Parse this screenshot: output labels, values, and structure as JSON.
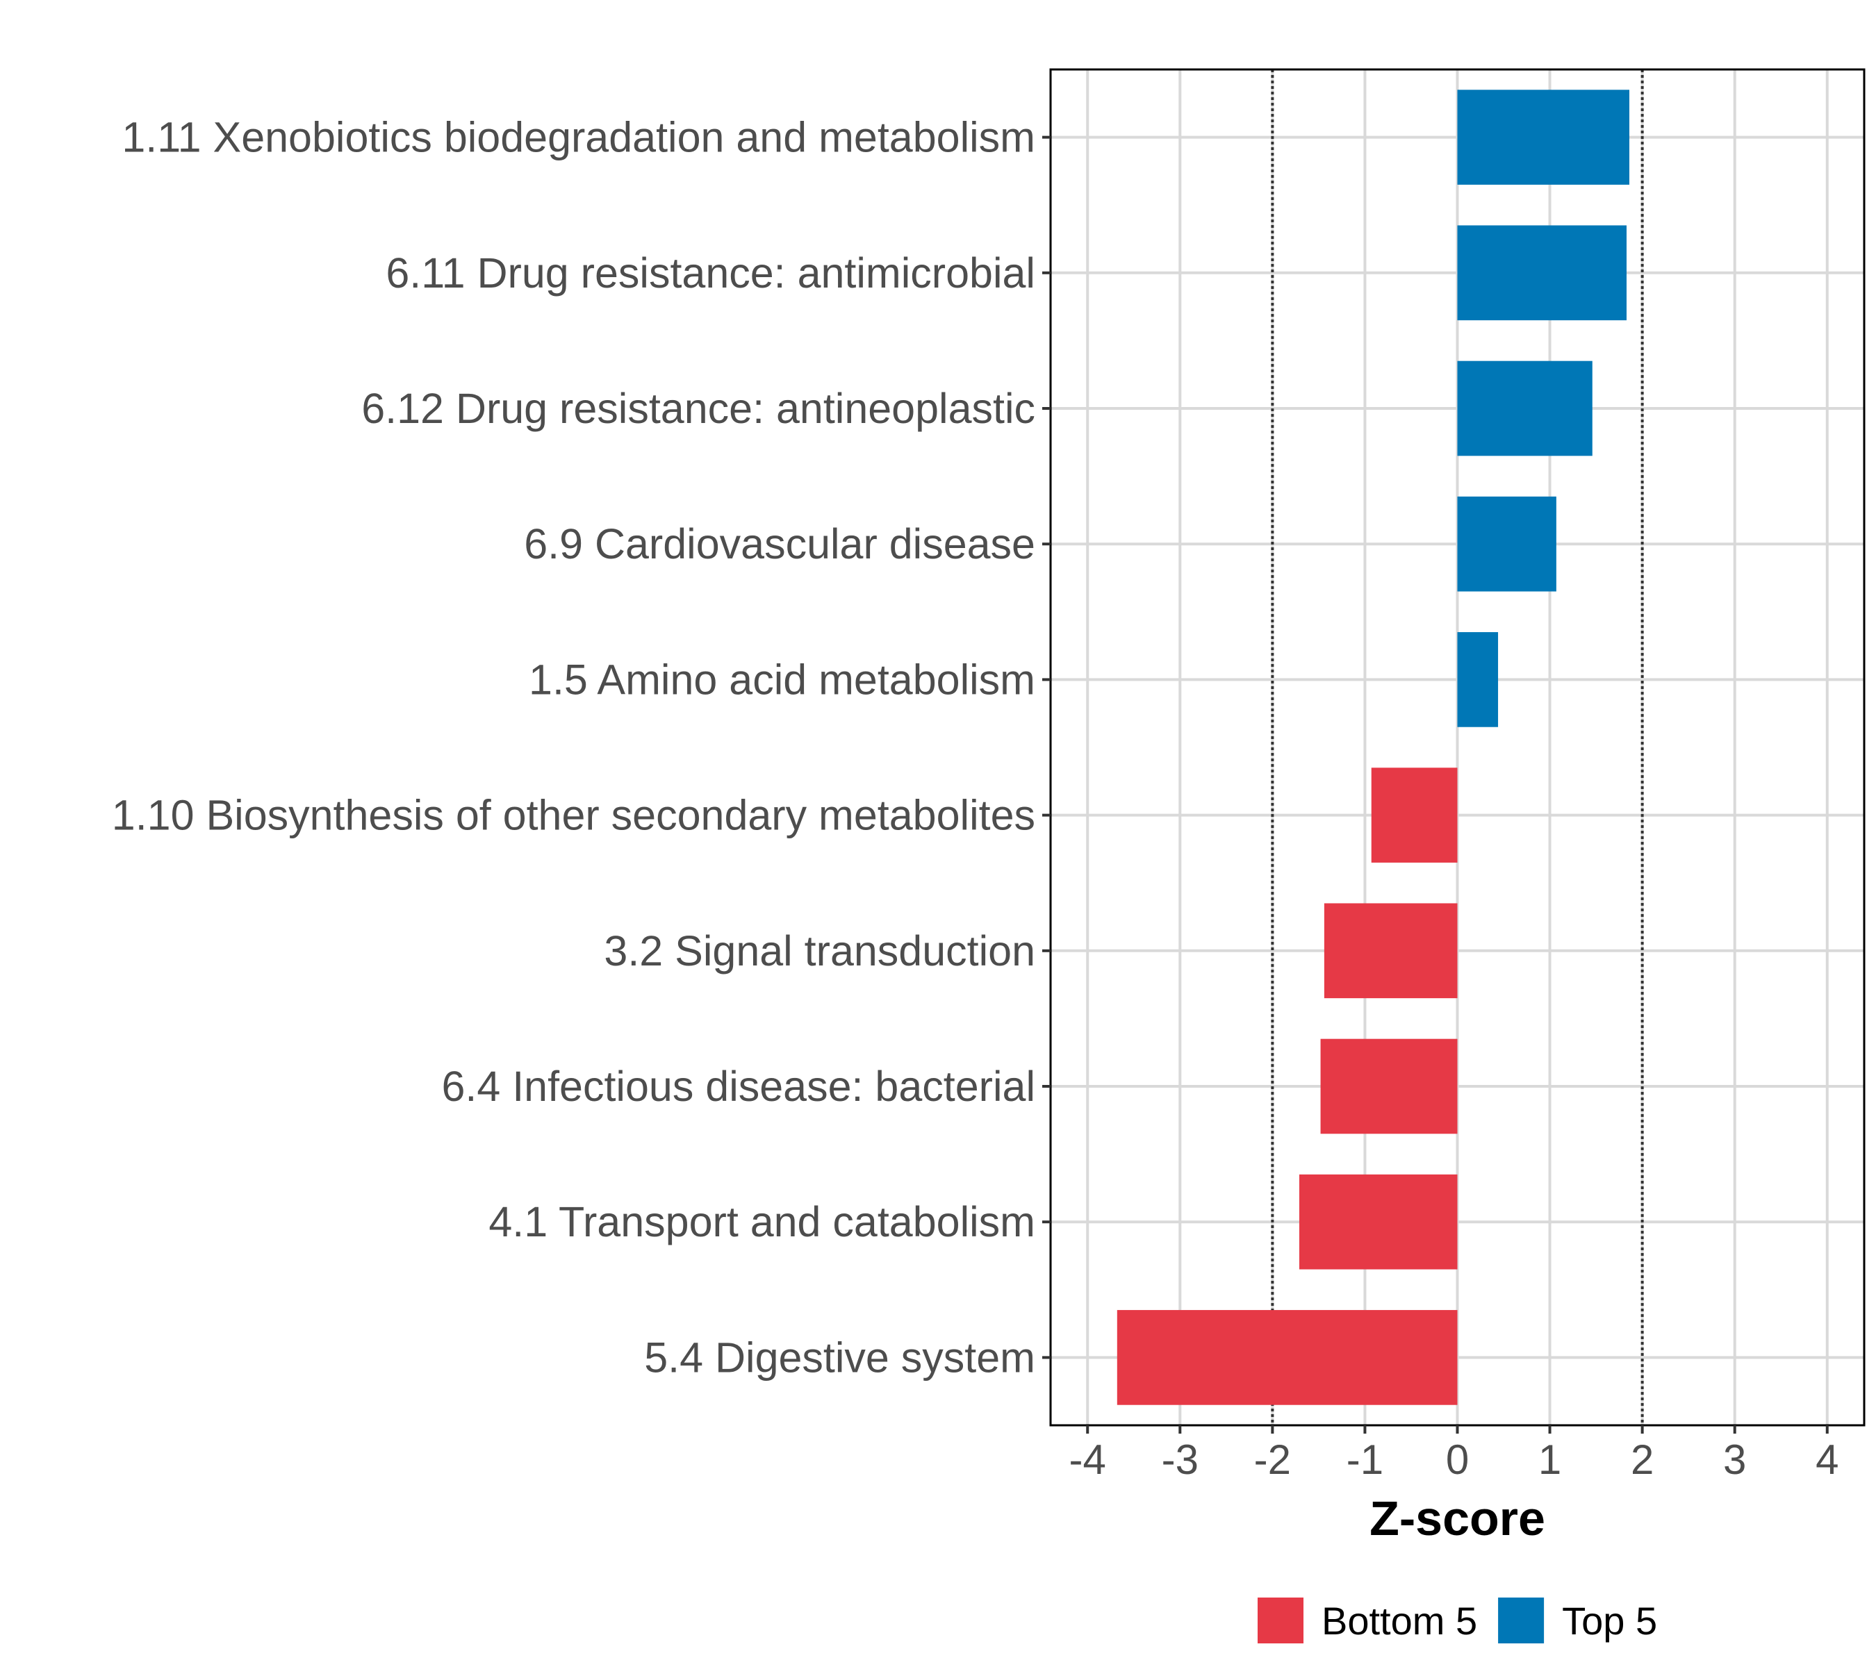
{
  "chart_data": {
    "type": "bar",
    "orientation": "horizontal",
    "categories": [
      "1.11 Xenobiotics biodegradation and metabolism",
      "6.11 Drug resistance: antimicrobial",
      "6.12 Drug resistance: antineoplastic",
      "6.9 Cardiovascular disease",
      "1.5 Amino acid metabolism",
      "1.10 Biosynthesis of other secondary metabolites",
      "3.2 Signal transduction",
      "6.4 Infectious disease: bacterial",
      "4.1 Transport and catabolism",
      "5.4 Digestive system"
    ],
    "values": [
      1.86,
      1.83,
      1.46,
      1.07,
      0.44,
      -0.93,
      -1.44,
      -1.48,
      -1.71,
      -3.68
    ],
    "groups": [
      "Top 5",
      "Top 5",
      "Top 5",
      "Top 5",
      "Top 5",
      "Bottom 5",
      "Bottom 5",
      "Bottom 5",
      "Bottom 5",
      "Bottom 5"
    ],
    "xlabel": "Z-score",
    "xlim": [
      -4.4,
      4.4
    ],
    "xticks": [
      "-4",
      "-3",
      "-2",
      "-1",
      "0",
      "1",
      "2",
      "3",
      "4"
    ],
    "reference_lines": [
      -2,
      2
    ],
    "grid": true,
    "legend_position": "bottom",
    "legend": [
      {
        "label": "Bottom 5",
        "color": "#E63946"
      },
      {
        "label": "Top 5",
        "color": "#0077B6"
      }
    ]
  }
}
